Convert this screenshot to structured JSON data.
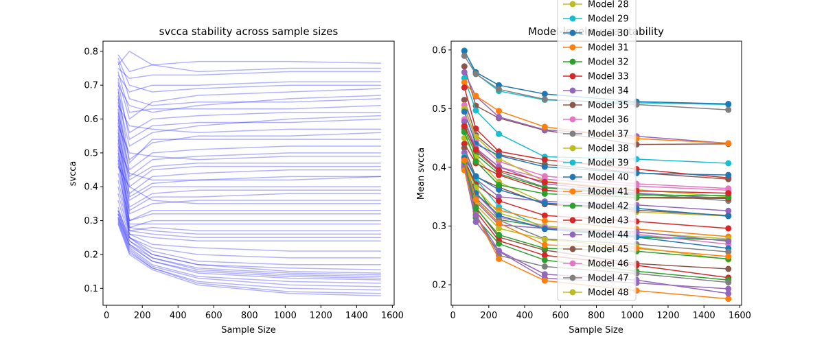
{
  "chart_data": [
    {
      "type": "line",
      "title": "svcca stability across sample sizes",
      "xlabel": "Sample Size",
      "ylabel": "svcca",
      "xlim": [
        -20,
        1610
      ],
      "ylim": [
        0.05,
        0.83
      ],
      "xticks": [
        0,
        200,
        400,
        600,
        800,
        1000,
        1200,
        1400,
        1600
      ],
      "yticks": [
        0.1,
        0.2,
        0.3,
        0.4,
        0.5,
        0.6,
        0.7,
        0.8
      ],
      "x": [
        64,
        128,
        256,
        512,
        1024,
        1536
      ],
      "line_color": "#0000ff",
      "line_alpha": 0.3,
      "grid": false,
      "series": [
        {
          "values": [
            0.79,
            0.74,
            0.76,
            0.77,
            0.77,
            0.765
          ]
        },
        {
          "values": [
            0.76,
            0.8,
            0.76,
            0.74,
            0.75,
            0.75
          ]
        },
        {
          "values": [
            0.75,
            0.72,
            0.73,
            0.73,
            0.74,
            0.74
          ]
        },
        {
          "values": [
            0.73,
            0.68,
            0.7,
            0.7,
            0.71,
            0.71
          ]
        },
        {
          "values": [
            0.72,
            0.6,
            0.65,
            0.67,
            0.68,
            0.69
          ]
        },
        {
          "values": [
            0.7,
            0.64,
            0.62,
            0.64,
            0.66,
            0.67
          ]
        },
        {
          "values": [
            0.68,
            0.56,
            0.6,
            0.61,
            0.62,
            0.62
          ]
        },
        {
          "values": [
            0.66,
            0.52,
            0.56,
            0.58,
            0.6,
            0.61
          ]
        },
        {
          "values": [
            0.64,
            0.58,
            0.57,
            0.56,
            0.57,
            0.57
          ]
        },
        {
          "values": [
            0.62,
            0.48,
            0.53,
            0.55,
            0.55,
            0.56
          ]
        },
        {
          "values": [
            0.6,
            0.45,
            0.5,
            0.51,
            0.52,
            0.52
          ]
        },
        {
          "values": [
            0.58,
            0.5,
            0.49,
            0.48,
            0.49,
            0.49
          ]
        },
        {
          "values": [
            0.56,
            0.42,
            0.46,
            0.47,
            0.47,
            0.47
          ]
        },
        {
          "values": [
            0.54,
            0.38,
            0.43,
            0.44,
            0.45,
            0.45
          ]
        },
        {
          "values": [
            0.52,
            0.44,
            0.42,
            0.42,
            0.42,
            0.43
          ]
        },
        {
          "values": [
            0.5,
            0.36,
            0.4,
            0.4,
            0.4,
            0.4
          ]
        },
        {
          "values": [
            0.48,
            0.33,
            0.37,
            0.37,
            0.38,
            0.38
          ]
        },
        {
          "values": [
            0.46,
            0.4,
            0.36,
            0.35,
            0.35,
            0.35
          ]
        },
        {
          "values": [
            0.44,
            0.3,
            0.33,
            0.33,
            0.33,
            0.33
          ]
        },
        {
          "values": [
            0.42,
            0.28,
            0.3,
            0.3,
            0.3,
            0.3
          ]
        },
        {
          "values": [
            0.4,
            0.27,
            0.28,
            0.27,
            0.27,
            0.27
          ]
        },
        {
          "values": [
            0.38,
            0.26,
            0.25,
            0.24,
            0.24,
            0.24
          ]
        },
        {
          "values": [
            0.36,
            0.25,
            0.22,
            0.2,
            0.19,
            0.19
          ]
        },
        {
          "values": [
            0.34,
            0.24,
            0.2,
            0.17,
            0.16,
            0.155
          ]
        },
        {
          "values": [
            0.33,
            0.23,
            0.19,
            0.155,
            0.14,
            0.135
          ]
        },
        {
          "values": [
            0.32,
            0.225,
            0.18,
            0.145,
            0.13,
            0.125
          ]
        },
        {
          "values": [
            0.31,
            0.22,
            0.17,
            0.135,
            0.12,
            0.115
          ]
        },
        {
          "values": [
            0.305,
            0.215,
            0.165,
            0.13,
            0.11,
            0.105
          ]
        },
        {
          "values": [
            0.3,
            0.21,
            0.16,
            0.12,
            0.1,
            0.095
          ]
        },
        {
          "values": [
            0.295,
            0.205,
            0.16,
            0.115,
            0.09,
            0.085
          ]
        },
        {
          "values": [
            0.29,
            0.2,
            0.155,
            0.11,
            0.085,
            0.078
          ]
        },
        {
          "values": [
            0.31,
            0.23,
            0.18,
            0.15,
            0.135,
            0.13
          ]
        },
        {
          "values": [
            0.32,
            0.24,
            0.19,
            0.16,
            0.145,
            0.14
          ]
        },
        {
          "values": [
            0.33,
            0.25,
            0.2,
            0.17,
            0.15,
            0.145
          ]
        },
        {
          "values": [
            0.78,
            0.7,
            0.68,
            0.69,
            0.7,
            0.7
          ]
        },
        {
          "values": [
            0.77,
            0.66,
            0.64,
            0.65,
            0.65,
            0.66
          ]
        },
        {
          "values": [
            0.74,
            0.62,
            0.63,
            0.63,
            0.63,
            0.64
          ]
        },
        {
          "values": [
            0.71,
            0.54,
            0.58,
            0.59,
            0.59,
            0.6
          ]
        },
        {
          "values": [
            0.69,
            0.47,
            0.54,
            0.54,
            0.54,
            0.54
          ]
        },
        {
          "values": [
            0.67,
            0.43,
            0.48,
            0.49,
            0.5,
            0.5
          ]
        },
        {
          "values": [
            0.65,
            0.4,
            0.45,
            0.46,
            0.46,
            0.46
          ]
        },
        {
          "values": [
            0.63,
            0.37,
            0.41,
            0.42,
            0.43,
            0.43
          ]
        },
        {
          "values": [
            0.61,
            0.34,
            0.38,
            0.39,
            0.39,
            0.39
          ]
        },
        {
          "values": [
            0.59,
            0.32,
            0.35,
            0.36,
            0.36,
            0.36
          ]
        },
        {
          "values": [
            0.57,
            0.3,
            0.32,
            0.32,
            0.32,
            0.32
          ]
        },
        {
          "values": [
            0.55,
            0.29,
            0.29,
            0.29,
            0.29,
            0.29
          ]
        },
        {
          "values": [
            0.53,
            0.28,
            0.27,
            0.26,
            0.26,
            0.26
          ]
        },
        {
          "values": [
            0.51,
            0.27,
            0.26,
            0.25,
            0.25,
            0.25
          ]
        },
        {
          "values": [
            0.49,
            0.26,
            0.23,
            0.22,
            0.21,
            0.21
          ]
        },
        {
          "values": [
            0.47,
            0.25,
            0.21,
            0.18,
            0.17,
            0.17
          ]
        }
      ]
    },
    {
      "type": "line",
      "title": "Model-level svcca stability",
      "xlabel": "Sample Size",
      "ylabel": "Mean svcca",
      "xlim": [
        -10,
        1610
      ],
      "ylim": [
        0.165,
        0.615
      ],
      "xticks": [
        0,
        200,
        400,
        600,
        800,
        1000,
        1200,
        1400,
        1600
      ],
      "yticks": [
        0.2,
        0.3,
        0.4,
        0.5,
        0.6
      ],
      "x": [
        64,
        128,
        256,
        512,
        1024,
        1536
      ],
      "markers": true,
      "grid": false,
      "legend_position": "top-center",
      "legend": [
        {
          "name": "Model 28",
          "color": "#bcbd22"
        },
        {
          "name": "Model 29",
          "color": "#17becf"
        },
        {
          "name": "Model 30",
          "color": "#1f77b4"
        },
        {
          "name": "Model 31",
          "color": "#ff7f0e"
        },
        {
          "name": "Model 32",
          "color": "#2ca02c"
        },
        {
          "name": "Model 33",
          "color": "#d62728"
        },
        {
          "name": "Model 34",
          "color": "#9467bd"
        },
        {
          "name": "Model 35",
          "color": "#8c564b"
        },
        {
          "name": "Model 36",
          "color": "#e377c2"
        },
        {
          "name": "Model 37",
          "color": "#7f7f7f"
        },
        {
          "name": "Model 38",
          "color": "#bcbd22"
        },
        {
          "name": "Model 39",
          "color": "#17becf"
        },
        {
          "name": "Model 40",
          "color": "#1f77b4"
        },
        {
          "name": "Model 41",
          "color": "#ff7f0e"
        },
        {
          "name": "Model 42",
          "color": "#2ca02c"
        },
        {
          "name": "Model 43",
          "color": "#d62728"
        },
        {
          "name": "Model 44",
          "color": "#9467bd"
        },
        {
          "name": "Model 45",
          "color": "#8c564b"
        },
        {
          "name": "Model 46",
          "color": "#e377c2"
        },
        {
          "name": "Model 47",
          "color": "#7f7f7f"
        },
        {
          "name": "Model 48",
          "color": "#bcbd22"
        }
      ],
      "series": [
        {
          "color": "#17becf",
          "values": [
            0.599,
            0.56,
            0.53,
            0.515,
            0.51,
            0.507
          ]
        },
        {
          "color": "#1f77b4",
          "values": [
            0.598,
            0.562,
            0.54,
            0.525,
            0.512,
            0.508
          ]
        },
        {
          "color": "#7f7f7f",
          "values": [
            0.59,
            0.559,
            0.533,
            0.516,
            0.507,
            0.498
          ]
        },
        {
          "color": "#8c564b",
          "values": [
            0.572,
            0.505,
            0.484,
            0.463,
            0.439,
            0.44
          ]
        },
        {
          "color": "#9467bd",
          "values": [
            0.562,
            0.521,
            0.486,
            0.464,
            0.453,
            0.441
          ]
        },
        {
          "color": "#17becf",
          "values": [
            0.552,
            0.497,
            0.457,
            0.418,
            0.414,
            0.407
          ]
        },
        {
          "color": "#ff7f0e",
          "values": [
            0.545,
            0.522,
            0.496,
            0.469,
            0.449,
            0.441
          ]
        },
        {
          "color": "#d62728",
          "values": [
            0.536,
            0.466,
            0.427,
            0.413,
            0.397,
            0.382
          ]
        },
        {
          "color": "#8c564b",
          "values": [
            0.515,
            0.455,
            0.422,
            0.405,
            0.391,
            0.38
          ]
        },
        {
          "color": "#e377c2",
          "values": [
            0.506,
            0.445,
            0.41,
            0.385,
            0.372,
            0.364
          ]
        },
        {
          "color": "#bcbd22",
          "values": [
            0.5,
            0.452,
            0.415,
            0.376,
            0.362,
            0.35
          ]
        },
        {
          "color": "#1f77b4",
          "values": [
            0.495,
            0.44,
            0.42,
            0.401,
            0.39,
            0.387
          ]
        },
        {
          "color": "#e377c2",
          "values": [
            0.482,
            0.433,
            0.401,
            0.38,
            0.368,
            0.361
          ]
        },
        {
          "color": "#9467bd",
          "values": [
            0.478,
            0.432,
            0.401,
            0.372,
            0.356,
            0.347
          ]
        },
        {
          "color": "#7f7f7f",
          "values": [
            0.471,
            0.427,
            0.393,
            0.366,
            0.355,
            0.343
          ]
        },
        {
          "color": "#2ca02c",
          "values": [
            0.465,
            0.422,
            0.389,
            0.365,
            0.353,
            0.352
          ]
        },
        {
          "color": "#bcbd22",
          "values": [
            0.45,
            0.417,
            0.375,
            0.339,
            0.324,
            0.317
          ]
        },
        {
          "color": "#d62728",
          "values": [
            0.44,
            0.407,
            0.387,
            0.361,
            0.348,
            0.347
          ]
        },
        {
          "color": "#8c564b",
          "values": [
            0.433,
            0.384,
            0.366,
            0.337,
            0.327,
            0.318
          ]
        },
        {
          "color": "#9467bd",
          "values": [
            0.425,
            0.38,
            0.35,
            0.342,
            0.336,
            0.326
          ]
        },
        {
          "color": "#17becf",
          "values": [
            0.418,
            0.38,
            0.333,
            0.296,
            0.283,
            0.276
          ]
        },
        {
          "color": "#1f77b4",
          "values": [
            0.416,
            0.385,
            0.362,
            0.339,
            0.33,
            0.317
          ]
        },
        {
          "color": "#d62728",
          "values": [
            0.413,
            0.371,
            0.343,
            0.318,
            0.308,
            0.296
          ]
        },
        {
          "color": "#ff7f0e",
          "values": [
            0.411,
            0.352,
            0.327,
            0.309,
            0.295,
            0.282
          ]
        },
        {
          "color": "#2ca02c",
          "values": [
            0.409,
            0.367,
            0.311,
            0.298,
            0.281,
            0.276
          ]
        },
        {
          "color": "#bcbd22",
          "values": [
            0.407,
            0.365,
            0.322,
            0.3,
            0.289,
            0.278
          ]
        },
        {
          "color": "#e377c2",
          "values": [
            0.405,
            0.355,
            0.315,
            0.298,
            0.286,
            0.269
          ]
        },
        {
          "color": "#9467bd",
          "values": [
            0.404,
            0.342,
            0.302,
            0.296,
            0.29,
            0.274
          ]
        },
        {
          "color": "#1f77b4",
          "values": [
            0.403,
            0.356,
            0.318,
            0.295,
            0.281,
            0.262
          ]
        },
        {
          "color": "#7f7f7f",
          "values": [
            0.402,
            0.348,
            0.31,
            0.278,
            0.269,
            0.256
          ]
        },
        {
          "color": "#bcbd22",
          "values": [
            0.401,
            0.336,
            0.296,
            0.277,
            0.264,
            0.243
          ]
        },
        {
          "color": "#8c564b",
          "values": [
            0.4,
            0.332,
            0.281,
            0.259,
            0.236,
            0.227
          ]
        },
        {
          "color": "#d62728",
          "values": [
            0.399,
            0.325,
            0.275,
            0.25,
            0.233,
            0.212
          ]
        },
        {
          "color": "#2ca02c",
          "values": [
            0.398,
            0.314,
            0.27,
            0.242,
            0.223,
            0.208
          ]
        },
        {
          "color": "#9467bd",
          "values": [
            0.397,
            0.307,
            0.257,
            0.211,
            0.203,
            0.193
          ]
        },
        {
          "color": "#7f7f7f",
          "values": [
            0.396,
            0.32,
            0.25,
            0.231,
            0.219,
            0.204
          ]
        },
        {
          "color": "#ff7f0e",
          "values": [
            0.395,
            0.319,
            0.244,
            0.207,
            0.19,
            0.176
          ]
        },
        {
          "color": "#9467bd",
          "values": [
            0.405,
            0.318,
            0.258,
            0.218,
            0.208,
            0.185
          ]
        },
        {
          "color": "#2ca02c",
          "values": [
            0.41,
            0.33,
            0.285,
            0.262,
            0.257,
            0.244
          ]
        },
        {
          "color": "#ff7f0e",
          "values": [
            0.412,
            0.345,
            0.305,
            0.268,
            0.262,
            0.248
          ]
        },
        {
          "color": "#2ca02c",
          "values": [
            0.46,
            0.41,
            0.37,
            0.355,
            0.349,
            0.349
          ]
        },
        {
          "color": "#d62728",
          "values": [
            0.47,
            0.43,
            0.395,
            0.375,
            0.36,
            0.356
          ]
        }
      ]
    }
  ]
}
